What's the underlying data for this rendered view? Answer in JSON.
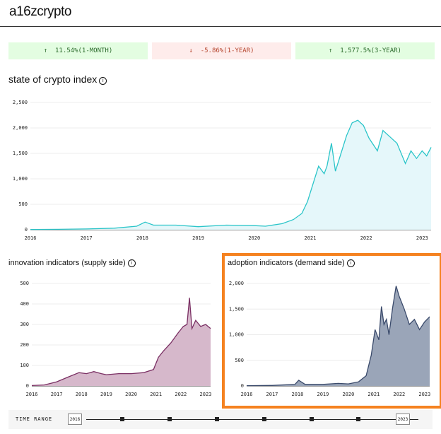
{
  "header": {
    "logo": "a16zcrypto"
  },
  "stats": [
    {
      "arrow": "↑",
      "text": "11.54%(1-MONTH)",
      "bg": "#e3fde1",
      "color": "#2b6b2b"
    },
    {
      "arrow": "↓",
      "text": "-5.86%(1-YEAR)",
      "bg": "#feeceb",
      "color": "#b5452d"
    },
    {
      "arrow": "↑",
      "text": "1,577.5%(3-YEAR)",
      "bg": "#e3fde1",
      "color": "#2b6b2b"
    }
  ],
  "time_range": {
    "label": "TIME RANGE",
    "start": "2016",
    "end": "2023"
  },
  "chart_data": [
    {
      "type": "area",
      "title": "state of crypto index",
      "info": "i",
      "color": "#2bc5c9",
      "fill": "#e5f7fa",
      "xticks": [
        "2016",
        "2017",
        "2018",
        "2019",
        "2020",
        "2021",
        "2022",
        "2023"
      ],
      "yticks": [
        "0",
        "500",
        "1,000",
        "1,500",
        "2,000",
        "2,500"
      ],
      "ylim": [
        0,
        2500
      ],
      "xlim": [
        2016,
        2023.16
      ],
      "x": [
        2016,
        2016.5,
        2017,
        2017.5,
        2017.9,
        2018.05,
        2018.2,
        2018.6,
        2019,
        2019.5,
        2020,
        2020.2,
        2020.5,
        2020.7,
        2020.85,
        2020.95,
        2021.05,
        2021.15,
        2021.25,
        2021.3,
        2021.38,
        2021.45,
        2021.55,
        2021.65,
        2021.75,
        2021.85,
        2021.95,
        2022.05,
        2022.2,
        2022.3,
        2022.4,
        2022.55,
        2022.7,
        2022.8,
        2022.9,
        2023,
        2023.08,
        2023.16
      ],
      "values": [
        5,
        8,
        15,
        30,
        70,
        150,
        90,
        90,
        60,
        90,
        80,
        70,
        120,
        200,
        320,
        550,
        900,
        1250,
        1100,
        1250,
        1700,
        1150,
        1500,
        1850,
        2100,
        2150,
        2050,
        1800,
        1550,
        1950,
        1850,
        1700,
        1300,
        1550,
        1400,
        1550,
        1450,
        1620
      ]
    },
    {
      "type": "area",
      "title": "innovation indicators (supply side)",
      "info": "i",
      "color": "#7a2f63",
      "fill": "#d6b8cb",
      "xticks": [
        "2016",
        "2017",
        "2018",
        "2019",
        "2020",
        "2021",
        "2022",
        "2023"
      ],
      "yticks": [
        "0",
        "100",
        "200",
        "300",
        "400",
        "500"
      ],
      "ylim": [
        0,
        500
      ],
      "xlim": [
        2016,
        2023.2
      ],
      "x": [
        2016,
        2016.5,
        2017,
        2017.5,
        2017.9,
        2018.2,
        2018.5,
        2018.8,
        2019,
        2019.5,
        2020,
        2020.5,
        2020.9,
        2021.1,
        2021.3,
        2021.6,
        2021.9,
        2022.1,
        2022.25,
        2022.35,
        2022.45,
        2022.6,
        2022.8,
        2023,
        2023.2
      ],
      "values": [
        2,
        5,
        20,
        45,
        65,
        60,
        70,
        60,
        55,
        60,
        60,
        65,
        80,
        140,
        170,
        210,
        260,
        290,
        300,
        430,
        280,
        320,
        290,
        300,
        280
      ]
    },
    {
      "type": "area",
      "title": "adoption indicators (demand side)",
      "info": "i",
      "color": "#3a4a6b",
      "fill": "#9aa5b8",
      "xticks": [
        "2016",
        "2017",
        "2018",
        "2019",
        "2020",
        "2021",
        "2022",
        "2023"
      ],
      "yticks": [
        "0",
        "500",
        "1,000",
        "1,500",
        "2,000"
      ],
      "ylim": [
        0,
        2000
      ],
      "xlim": [
        2016,
        2023.2
      ],
      "x": [
        2016,
        2017,
        2017.9,
        2018.05,
        2018.3,
        2019,
        2019.6,
        2020,
        2020.4,
        2020.7,
        2020.9,
        2021.05,
        2021.2,
        2021.3,
        2021.4,
        2021.5,
        2021.6,
        2021.75,
        2021.88,
        2022,
        2022.2,
        2022.4,
        2022.6,
        2022.8,
        2023,
        2023.2
      ],
      "values": [
        5,
        10,
        30,
        110,
        30,
        30,
        50,
        40,
        80,
        200,
        600,
        1100,
        900,
        1550,
        1200,
        1300,
        1000,
        1550,
        1950,
        1750,
        1500,
        1200,
        1300,
        1100,
        1250,
        1350
      ]
    }
  ]
}
